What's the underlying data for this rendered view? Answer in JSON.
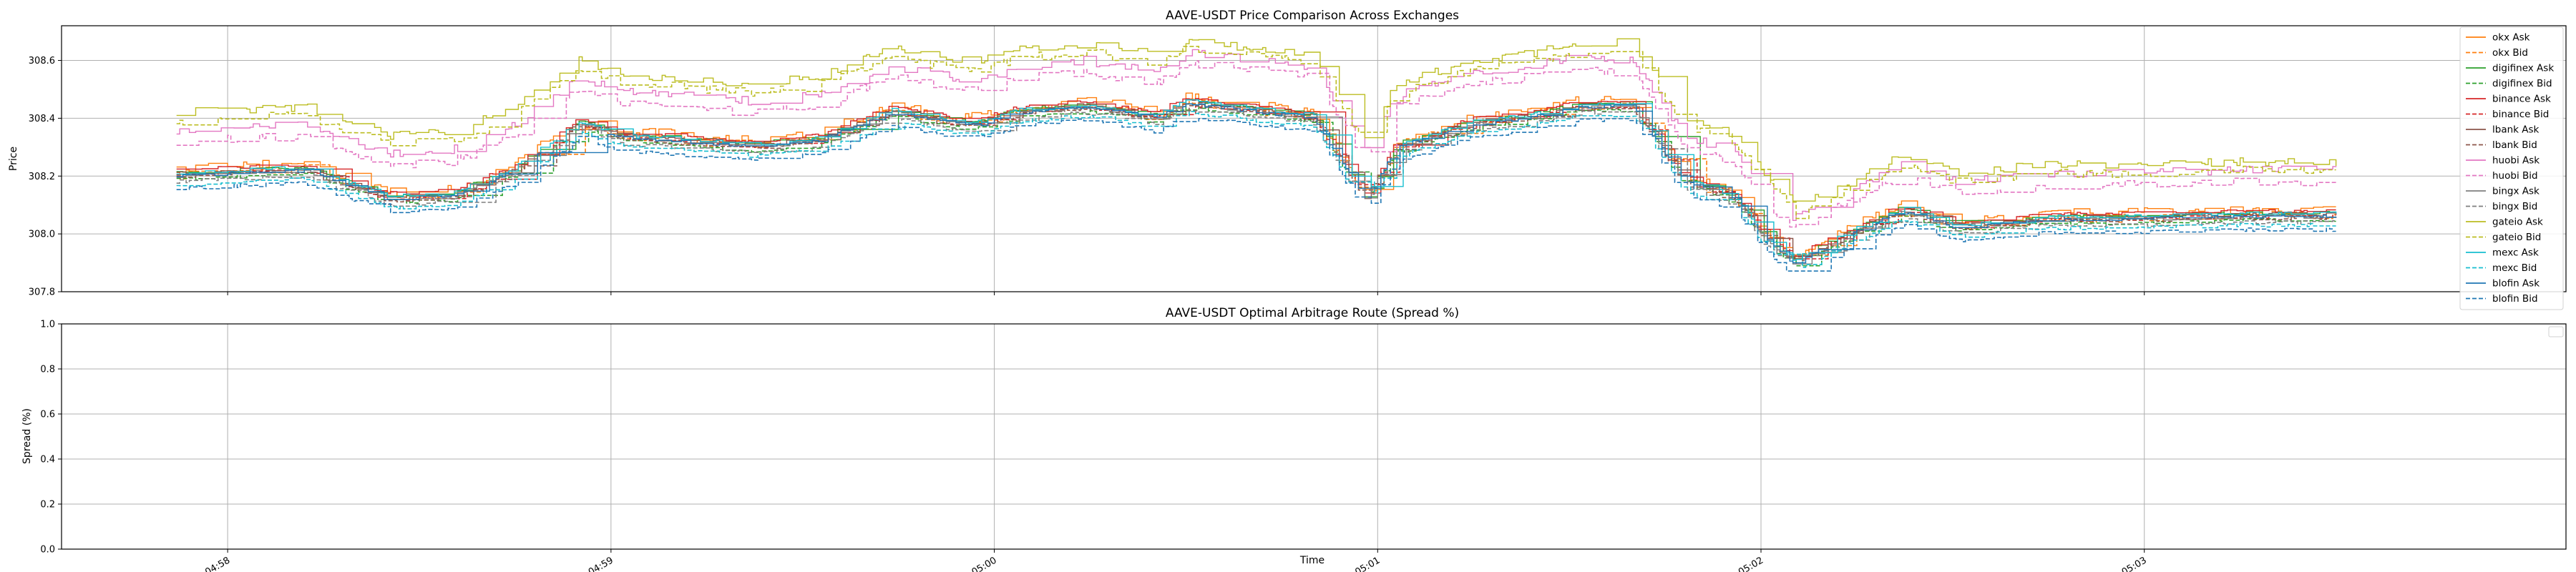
{
  "chart_data": [
    {
      "type": "line",
      "title": "AAVE-USDT Price Comparison Across Exchanges",
      "xlabel": "",
      "ylabel": "Price",
      "ylim": [
        307.8,
        308.72
      ],
      "yticks": [
        "307.8",
        "308.0",
        "308.2",
        "308.4",
        "308.6"
      ],
      "ytick_values": [
        307.8,
        308.0,
        308.2,
        308.4,
        308.6
      ],
      "xlim_seconds": [
        -26,
        366
      ],
      "xticks": [
        "23 04:58",
        "23 04:59",
        "23 05:00",
        "23 05:01",
        "23 05:02",
        "23 05:03"
      ],
      "xtick_seconds": [
        0,
        60,
        120,
        180,
        240,
        300
      ],
      "grid": true,
      "legend_position": "upper-right",
      "anchors_seconds": [
        -8,
        0,
        12,
        25,
        35,
        45,
        55,
        62,
        70,
        82,
        92,
        104,
        114,
        118,
        124,
        134,
        145,
        150,
        158,
        170,
        178,
        183,
        195,
        203,
        212,
        220,
        228,
        236,
        240,
        245,
        254,
        262,
        271,
        285,
        296,
        315,
        330
      ],
      "base_price": [
        308.2,
        308.21,
        308.22,
        308.12,
        308.13,
        308.22,
        308.38,
        308.33,
        308.32,
        308.3,
        308.32,
        308.42,
        308.38,
        308.38,
        308.42,
        308.44,
        308.4,
        308.45,
        308.43,
        308.4,
        308.12,
        308.3,
        308.38,
        308.4,
        308.44,
        308.44,
        308.18,
        308.12,
        308.0,
        307.9,
        308.0,
        308.08,
        308.02,
        308.05,
        308.05,
        308.06,
        308.06
      ],
      "series": [
        {
          "name": "okx Ask",
          "color": "#ff7f0e",
          "dash": false,
          "offset": 0.025
        },
        {
          "name": "okx Bid",
          "color": "#ff7f0e",
          "dash": true,
          "offset": 0.005
        },
        {
          "name": "digifinex Ask",
          "color": "#2ca02c",
          "dash": false,
          "offset": 0.012
        },
        {
          "name": "digifinex Bid",
          "color": "#2ca02c",
          "dash": true,
          "offset": -0.012
        },
        {
          "name": "binance Ask",
          "color": "#d62728",
          "dash": false,
          "offset": 0.02
        },
        {
          "name": "binance Bid",
          "color": "#d62728",
          "dash": true,
          "offset": 0.0
        },
        {
          "name": "lbank Ask",
          "color": "#8c564b",
          "dash": false,
          "offset": 0.008
        },
        {
          "name": "lbank Bid",
          "color": "#8c564b",
          "dash": true,
          "offset": -0.005
        },
        {
          "name": "huobi Ask",
          "color": "#e377c2",
          "dash": false,
          "offset": 0.16
        },
        {
          "name": "huobi Bid",
          "color": "#e377c2",
          "dash": true,
          "offset": 0.12
        },
        {
          "name": "bingx Ask",
          "color": "#7f7f7f",
          "dash": false,
          "offset": 0.0
        },
        {
          "name": "bingx Bid",
          "color": "#7f7f7f",
          "dash": true,
          "offset": -0.02
        },
        {
          "name": "gateio Ask",
          "color": "#bcbd22",
          "dash": false,
          "offset": 0.22
        },
        {
          "name": "gateio Bid",
          "color": "#bcbd22",
          "dash": true,
          "offset": 0.19
        },
        {
          "name": "mexc Ask",
          "color": "#17becf",
          "dash": false,
          "offset": 0.01
        },
        {
          "name": "mexc Bid",
          "color": "#17becf",
          "dash": true,
          "offset": -0.03
        },
        {
          "name": "blofin Ask",
          "color": "#1f77b4",
          "dash": false,
          "offset": 0.0
        },
        {
          "name": "blofin Bid",
          "color": "#1f77b4",
          "dash": true,
          "offset": -0.045
        }
      ]
    },
    {
      "type": "line",
      "title": "AAVE-USDT Optimal Arbitrage Route (Spread %)",
      "xlabel": "Time",
      "ylabel": "Spread (%)",
      "ylim": [
        0.0,
        1.0
      ],
      "yticks": [
        "0.0",
        "0.2",
        "0.4",
        "0.6",
        "0.8",
        "1.0"
      ],
      "ytick_values": [
        0.0,
        0.2,
        0.4,
        0.6,
        0.8,
        1.0
      ],
      "xlim_seconds": [
        -26,
        366
      ],
      "xticks": [
        "23 04:58",
        "23 04:59",
        "23 05:00",
        "23 05:01",
        "23 05:02",
        "23 05:03"
      ],
      "xtick_seconds": [
        0,
        60,
        120,
        180,
        240,
        300
      ],
      "grid": true,
      "legend_position": "upper-right",
      "series": []
    }
  ]
}
